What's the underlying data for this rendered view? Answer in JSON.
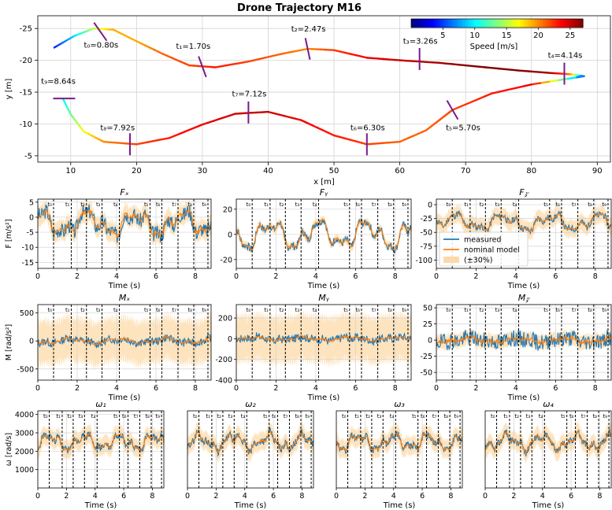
{
  "figure": {
    "title": "Drone Trajectory M16"
  },
  "chart_data": [
    {
      "id": "trajectory",
      "type": "line",
      "title": "Drone Trajectory M16",
      "xlabel": "x [m]",
      "ylabel": "y [m]",
      "xlim": [
        5,
        92
      ],
      "ylim": [
        -4,
        -27
      ],
      "xticks": [
        10,
        20,
        30,
        40,
        50,
        60,
        70,
        80,
        90
      ],
      "yticks": [
        -5,
        -10,
        -15,
        -20,
        -25
      ],
      "grid": true,
      "colorbar": {
        "label": "Speed [m/s]",
        "ticks": [
          5,
          10,
          15,
          20,
          25
        ],
        "range": [
          0,
          27
        ],
        "colormap": "jet",
        "placement": "top-right"
      },
      "path": [
        {
          "x": 7.5,
          "y": -22.0,
          "s": 4
        },
        {
          "x": 10.5,
          "y": -23.8,
          "s": 9
        },
        {
          "x": 13.5,
          "y": -25.0,
          "s": 15
        },
        {
          "x": 16.5,
          "y": -24.8,
          "s": 19
        },
        {
          "x": 20.0,
          "y": -23.0,
          "s": 19
        },
        {
          "x": 24.0,
          "y": -21.0,
          "s": 21
        },
        {
          "x": 28.0,
          "y": -19.2,
          "s": 22
        },
        {
          "x": 32.0,
          "y": -18.9,
          "s": 23
        },
        {
          "x": 37.0,
          "y": -19.8,
          "s": 22
        },
        {
          "x": 42.0,
          "y": -21.0,
          "s": 21
        },
        {
          "x": 46.0,
          "y": -21.8,
          "s": 20
        },
        {
          "x": 50.0,
          "y": -21.6,
          "s": 22
        },
        {
          "x": 55.0,
          "y": -20.4,
          "s": 24
        },
        {
          "x": 60.0,
          "y": -20.0,
          "s": 25
        },
        {
          "x": 66.0,
          "y": -19.6,
          "s": 26
        },
        {
          "x": 72.0,
          "y": -19.0,
          "s": 27
        },
        {
          "x": 78.0,
          "y": -18.4,
          "s": 27
        },
        {
          "x": 83.0,
          "y": -18.0,
          "s": 26
        },
        {
          "x": 86.0,
          "y": -17.8,
          "s": 20
        },
        {
          "x": 88.0,
          "y": -17.5,
          "s": 5
        },
        {
          "x": 80.0,
          "y": -16.2,
          "s": 24
        },
        {
          "x": 74.0,
          "y": -14.8,
          "s": 23
        },
        {
          "x": 68.0,
          "y": -12.2,
          "s": 22
        },
        {
          "x": 64.0,
          "y": -9.0,
          "s": 21
        },
        {
          "x": 60.0,
          "y": -7.2,
          "s": 21
        },
        {
          "x": 55.0,
          "y": -6.8,
          "s": 22
        },
        {
          "x": 50.0,
          "y": -8.2,
          "s": 23
        },
        {
          "x": 45.0,
          "y": -10.6,
          "s": 24
        },
        {
          "x": 40.0,
          "y": -11.9,
          "s": 25
        },
        {
          "x": 35.0,
          "y": -11.6,
          "s": 25
        },
        {
          "x": 30.0,
          "y": -9.9,
          "s": 24
        },
        {
          "x": 25.0,
          "y": -7.8,
          "s": 23
        },
        {
          "x": 20.0,
          "y": -6.8,
          "s": 22
        },
        {
          "x": 15.0,
          "y": -7.2,
          "s": 20
        },
        {
          "x": 12.0,
          "y": -8.8,
          "s": 17
        },
        {
          "x": 10.0,
          "y": -11.5,
          "s": 13
        },
        {
          "x": 8.8,
          "y": -14.0,
          "s": 10
        }
      ],
      "markers": [
        {
          "label": "t₀=0.80s",
          "x": 14.5,
          "y": -24.5,
          "angle": 55,
          "lx": 12.0,
          "ly": -22.0
        },
        {
          "label": "t₁=1.70s",
          "x": 30.0,
          "y": -19.0,
          "angle": 70,
          "lx": 26.0,
          "ly": -21.8
        },
        {
          "label": "t₂=2.47s",
          "x": 46.0,
          "y": -21.8,
          "angle": 78,
          "lx": 43.5,
          "ly": -24.5
        },
        {
          "label": "t₃=3.26s",
          "x": 63.0,
          "y": -20.2,
          "angle": 90,
          "lx": 60.5,
          "ly": -22.6
        },
        {
          "label": "t₄=4.14s",
          "x": 85.0,
          "y": -17.9,
          "angle": 90,
          "lx": 82.5,
          "ly": -20.4
        },
        {
          "label": "t₅=5.70s",
          "x": 68.0,
          "y": -12.2,
          "angle": 60,
          "lx": 67.0,
          "ly": -9.0
        },
        {
          "label": "t₆=6.30s",
          "x": 55.0,
          "y": -6.8,
          "angle": 90,
          "lx": 52.5,
          "ly": -9.0
        },
        {
          "label": "t₇=7.12s",
          "x": 37.0,
          "y": -11.8,
          "angle": 90,
          "lx": 34.5,
          "ly": -14.3
        },
        {
          "label": "t₈=7.92s",
          "x": 19.0,
          "y": -6.8,
          "angle": 90,
          "lx": 14.5,
          "ly": -9.0
        },
        {
          "label": "t₉=8.64s",
          "x": 9.0,
          "y": -14.0,
          "angle": 0,
          "lx": 5.5,
          "ly": -16.3
        }
      ]
    },
    {
      "id": "Fx",
      "type": "line",
      "title": "Fₓ",
      "xlabel": "Time (s)",
      "ylabel": "F [m/s²]",
      "xlim": [
        0,
        8.8
      ],
      "ylim": [
        -17,
        6
      ],
      "xticks": [
        0,
        2,
        4,
        6,
        8
      ],
      "yticks": [
        5,
        0,
        -5,
        -10,
        -15
      ],
      "series": [
        {
          "name": "measured",
          "color": "#1f77b4"
        },
        {
          "name": "nominal model",
          "color": "#ff7f0e"
        }
      ],
      "seed": 3,
      "amp": 5,
      "offset": -2,
      "noise": 1.6,
      "band": 3.0
    },
    {
      "id": "Fy",
      "type": "line",
      "title": "Fᵧ",
      "xlabel": "Time (s)",
      "ylabel": "",
      "xlim": [
        0,
        8.8
      ],
      "ylim": [
        -27,
        28
      ],
      "xticks": [
        0,
        2,
        4,
        6,
        8
      ],
      "yticks": [
        20,
        0,
        -20
      ],
      "series": [
        {
          "name": "measured",
          "color": "#1f77b4"
        },
        {
          "name": "nominal model",
          "color": "#ff7f0e"
        }
      ],
      "seed": 7,
      "amp": 14,
      "offset": 0,
      "noise": 2.0,
      "band": 3.0
    },
    {
      "id": "Fz",
      "type": "line",
      "title": "F𝓏",
      "xlabel": "Time (s)",
      "ylabel": "",
      "xlim": [
        0,
        8.8
      ],
      "ylim": [
        -115,
        10
      ],
      "xticks": [
        0,
        2,
        4,
        6,
        8
      ],
      "yticks": [
        0,
        -25,
        -50,
        -75,
        -100
      ],
      "series": [
        {
          "name": "measured",
          "color": "#1f77b4"
        },
        {
          "name": "nominal model",
          "color": "#ff7f0e"
        }
      ],
      "legend": {
        "entries": [
          "measured",
          "nominal model",
          "(±30%)"
        ],
        "placement": "lower-left"
      },
      "seed": 11,
      "amp": 18,
      "offset": -32,
      "noise": 4,
      "band": 14
    },
    {
      "id": "Mx",
      "type": "line",
      "title": "Mₓ",
      "xlabel": "Time (s)",
      "ylabel": "M [rad/s²]",
      "xlim": [
        0,
        8.8
      ],
      "ylim": [
        -700,
        650
      ],
      "xticks": [
        0,
        2,
        4,
        6,
        8
      ],
      "yticks": [
        500,
        0,
        -500
      ],
      "series": [
        {
          "name": "measured",
          "color": "#1f77b4"
        },
        {
          "name": "nominal model",
          "color": "#ff7f0e"
        }
      ],
      "seed": 13,
      "amp": 60,
      "offset": 0,
      "noise": 45,
      "band": 350
    },
    {
      "id": "My",
      "type": "line",
      "title": "Mᵧ",
      "xlabel": "Time (s)",
      "ylabel": "",
      "xlim": [
        0,
        8.8
      ],
      "ylim": [
        -400,
        330
      ],
      "xticks": [
        0,
        2,
        4,
        6,
        8
      ],
      "yticks": [
        200,
        0,
        -200,
        -400
      ],
      "series": [
        {
          "name": "measured",
          "color": "#1f77b4"
        },
        {
          "name": "nominal model",
          "color": "#ff7f0e"
        }
      ],
      "seed": 17,
      "amp": 25,
      "offset": 0,
      "noise": 25,
      "band": 200
    },
    {
      "id": "Mz",
      "type": "line",
      "title": "M𝓏",
      "xlabel": "Time (s)",
      "ylabel": "",
      "xlim": [
        0,
        8.8
      ],
      "ylim": [
        -62,
        55
      ],
      "xticks": [
        0,
        2,
        4,
        6,
        8
      ],
      "yticks": [
        50,
        25,
        0,
        -25,
        -50
      ],
      "series": [
        {
          "name": "measured",
          "color": "#1f77b4"
        },
        {
          "name": "nominal model",
          "color": "#ff7f0e"
        }
      ],
      "seed": 19,
      "amp": 5,
      "offset": 0,
      "noise": 8,
      "band": 10
    },
    {
      "id": "w1",
      "type": "line",
      "title": "ω₁",
      "xlabel": "Time (s)",
      "ylabel": "ω [rad/s]",
      "xlim": [
        0,
        8.8
      ],
      "ylim": [
        0,
        4200
      ],
      "xticks": [
        0,
        2,
        4,
        6,
        8
      ],
      "yticks": [
        1000,
        2000,
        3000,
        4000
      ],
      "series": [
        {
          "name": "measured",
          "color": "#1f77b4"
        },
        {
          "name": "nominal model",
          "color": "#ff7f0e"
        }
      ],
      "seed": 23,
      "amp": 550,
      "offset": 2500,
      "noise": 120,
      "band": 450
    },
    {
      "id": "w2",
      "type": "line",
      "title": "ω₂",
      "xlabel": "Time (s)",
      "ylabel": "",
      "xlim": [
        0,
        8.8
      ],
      "ylim": [
        0,
        4200
      ],
      "xticks": [
        0,
        2,
        4,
        6,
        8
      ],
      "yticks": [],
      "series": [
        {
          "name": "measured",
          "color": "#1f77b4"
        },
        {
          "name": "nominal model",
          "color": "#ff7f0e"
        }
      ],
      "seed": 29,
      "amp": 550,
      "offset": 2500,
      "noise": 120,
      "band": 450
    },
    {
      "id": "w3",
      "type": "line",
      "title": "ω₃",
      "xlabel": "Time (s)",
      "ylabel": "",
      "xlim": [
        0,
        8.8
      ],
      "ylim": [
        0,
        4200
      ],
      "xticks": [
        0,
        2,
        4,
        6,
        8
      ],
      "yticks": [],
      "series": [
        {
          "name": "measured",
          "color": "#1f77b4"
        },
        {
          "name": "nominal model",
          "color": "#ff7f0e"
        }
      ],
      "seed": 31,
      "amp": 550,
      "offset": 2500,
      "noise": 120,
      "band": 450
    },
    {
      "id": "w4",
      "type": "line",
      "title": "ω₄",
      "xlabel": "Time (s)",
      "ylabel": "",
      "xlim": [
        0,
        8.8
      ],
      "ylim": [
        0,
        4200
      ],
      "xticks": [
        0,
        2,
        4,
        6,
        8
      ],
      "yticks": [],
      "series": [
        {
          "name": "measured",
          "color": "#1f77b4"
        },
        {
          "name": "nominal model",
          "color": "#ff7f0e"
        }
      ],
      "seed": 37,
      "amp": 550,
      "offset": 2500,
      "noise": 120,
      "band": 450
    }
  ],
  "time_markers": {
    "labels": [
      "t₀",
      "t₁",
      "t₂",
      "t₃",
      "t₄",
      "t₅",
      "t₆",
      "t₇",
      "t₈",
      "t₉"
    ],
    "times": [
      0.8,
      1.7,
      2.47,
      3.26,
      4.14,
      5.7,
      6.3,
      7.12,
      7.92,
      8.64
    ]
  },
  "colors": {
    "measured": "#1f77b4",
    "nominal": "#ff7f0e",
    "band": "#fcd9a8",
    "grid": "#d3d3d3",
    "marker": "#7b1a8c"
  }
}
